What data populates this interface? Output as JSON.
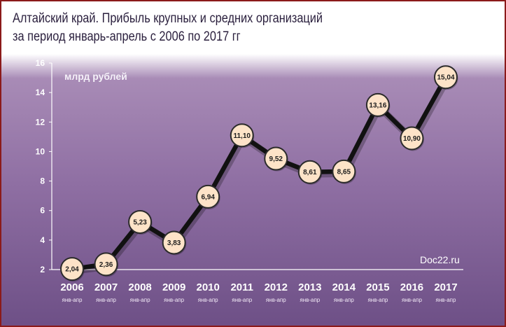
{
  "chart_data": {
    "type": "line",
    "title": "Алтайский край. Прибыль крупных и средних организаций",
    "subtitle": "за период январь-апрель с 2006 по 2017 гг",
    "unit_label": "млрд рублей",
    "source": "Doc22.ru",
    "categories": [
      "2006",
      "2007",
      "2008",
      "2009",
      "2010",
      "2011",
      "2012",
      "2013",
      "2014",
      "2015",
      "2016",
      "2017"
    ],
    "category_sublabel": "янв-апр",
    "values": [
      2.04,
      2.36,
      5.23,
      3.83,
      6.94,
      11.1,
      9.52,
      8.61,
      8.65,
      13.16,
      10.9,
      15.04
    ],
    "value_labels": [
      "2,04",
      "2,36",
      "5,23",
      "3,83",
      "6,94",
      "11,10",
      "9,52",
      "8,61",
      "8,65",
      "13,16",
      "10,90",
      "15,04"
    ],
    "ylim": [
      2,
      16
    ],
    "yticks": [
      2,
      4,
      6,
      8,
      10,
      12,
      14,
      16
    ],
    "grid": false,
    "colors": {
      "line": "#111111",
      "marker_fill": "#fde3c8",
      "marker_stroke": "#2b2b2b",
      "axis_text": "#ffffff",
      "frame": "#8b1a1a",
      "background_top": "#a88bb6",
      "background_bottom": "#6d4f86"
    }
  }
}
